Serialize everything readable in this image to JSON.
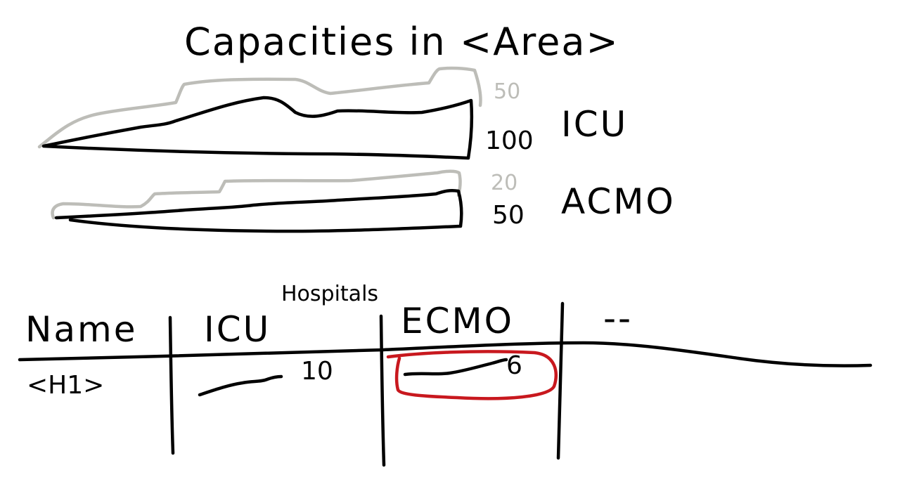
{
  "title": "Capacities in <Area>",
  "colors": {
    "ink": "#000000",
    "max_capacity": "#bdbdb8",
    "highlight": "#c8181e"
  },
  "capacity_charts": [
    {
      "label": "ICU",
      "current_value": "100",
      "max_value": "50"
    },
    {
      "label": "ACMO",
      "current_value": "50",
      "max_value": "20"
    }
  ],
  "hospitals_table": {
    "caption": "Hospitals",
    "headers": [
      "Name",
      "ICU",
      "ECMO",
      "--"
    ],
    "rows": [
      {
        "name": "<H1>",
        "icu_value": "10",
        "ecmo_value": "6"
      }
    ],
    "highlighted_cell": "ECMO"
  }
}
